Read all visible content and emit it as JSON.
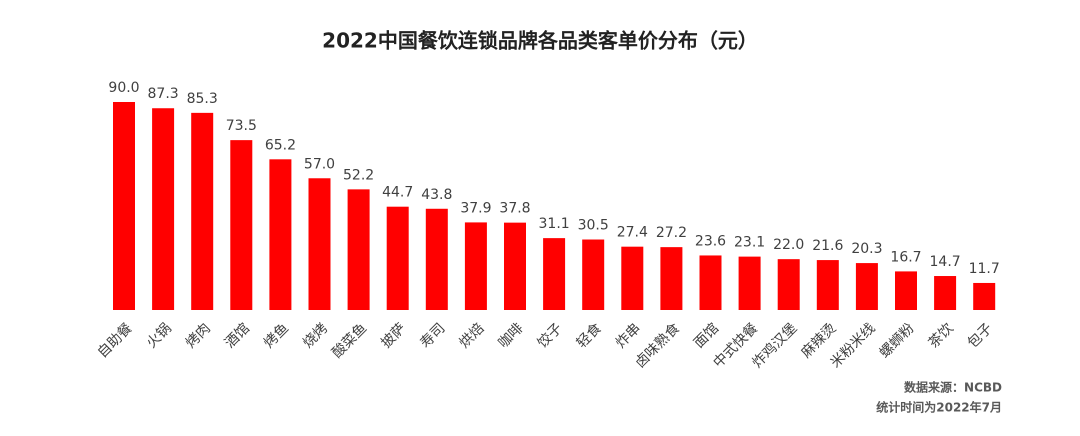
{
  "chart_data": {
    "type": "bar",
    "title": "2022中国餐饮连锁品牌各品类客单价分布（元）",
    "categories": [
      "自助餐",
      "火锅",
      "烤肉",
      "酒馆",
      "烤鱼",
      "烧烤",
      "酸菜鱼",
      "披萨",
      "寿司",
      "烘焙",
      "咖啡",
      "饺子",
      "轻食",
      "炸串",
      "卤味熟食",
      "面馆",
      "中式快餐",
      "炸鸡汉堡",
      "麻辣烫",
      "米粉米线",
      "螺蛳粉",
      "茶饮",
      "包子"
    ],
    "values": [
      90.0,
      87.3,
      85.3,
      73.5,
      65.2,
      57.0,
      52.2,
      44.7,
      43.8,
      37.9,
      37.8,
      31.1,
      30.5,
      27.4,
      27.2,
      23.6,
      23.1,
      22.0,
      21.6,
      20.3,
      16.7,
      14.7,
      11.7
    ],
    "value_labels": [
      "90.0",
      "87.3",
      "85.3",
      "73.5",
      "65.2",
      "57.0",
      "52.2",
      "44.7",
      "43.8",
      "37.9",
      "37.8",
      "31.1",
      "30.5",
      "27.4",
      "27.2",
      "23.6",
      "23.1",
      "22.0",
      "21.6",
      "20.3",
      "16.7",
      "14.7",
      "11.7"
    ],
    "color": "#ff0000",
    "source": "数据来源：NCBD",
    "period": "统计时间为2022年7月"
  }
}
